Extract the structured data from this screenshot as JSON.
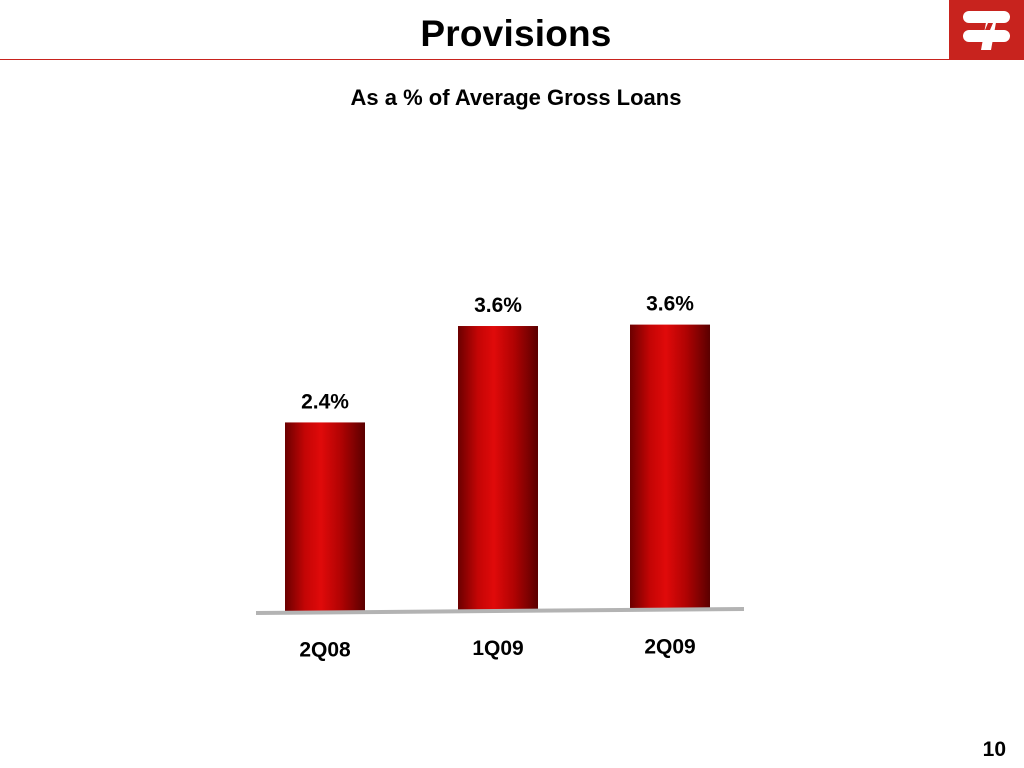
{
  "slide": {
    "title": "Provisions",
    "subtitle": "As a % of Average Gross Loans",
    "page_number": "10"
  },
  "logo": {
    "icon": "bank-logo-icon",
    "background_color": "#c8231e",
    "mark_color": "#ffffff"
  },
  "colors": {
    "bar_core": "#e00a0a",
    "bar_edge": "#6b0000",
    "baseline": "#b3b3b3"
  },
  "chart_data": {
    "type": "bar",
    "title": "As a % of Average Gross Loans",
    "categories": [
      "2Q08",
      "1Q09",
      "2Q09"
    ],
    "values": [
      2.4,
      3.6,
      3.6
    ],
    "value_labels": [
      "2.4%",
      "3.6%",
      "3.6%"
    ],
    "unit": "%",
    "xlabel": "",
    "ylabel": "",
    "ylim": [
      0,
      3.6
    ],
    "grid": false,
    "legend": "none"
  }
}
